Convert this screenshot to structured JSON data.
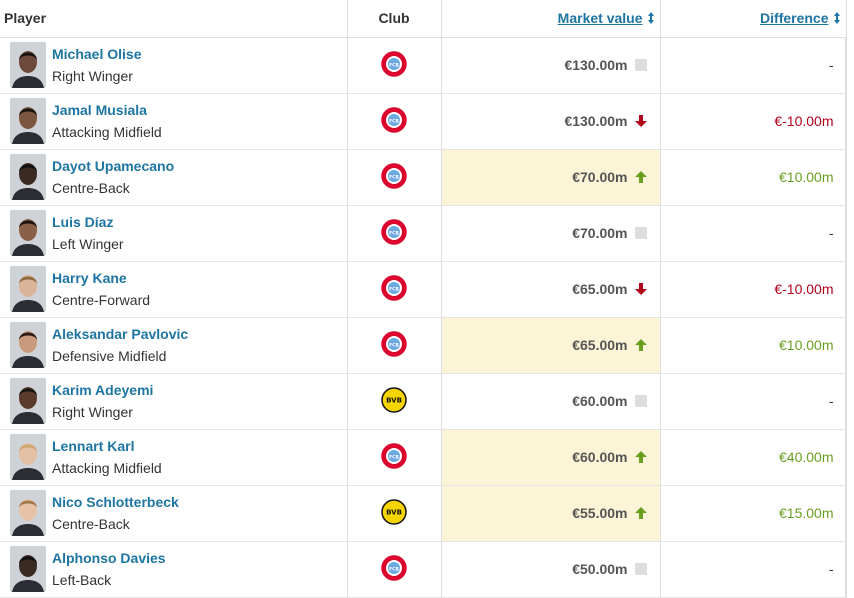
{
  "table": {
    "headers": [
      "Player",
      "Club",
      "Market value",
      "Difference"
    ],
    "rows": [
      {
        "name": "Michael Olise",
        "position": "Right Winger",
        "club": "FCB",
        "market_value": "€130.00m",
        "trend": "none",
        "difference": "-"
      },
      {
        "name": "Jamal Musiala",
        "position": "Attacking Midfield",
        "club": "FCB",
        "market_value": "€130.00m",
        "trend": "down",
        "difference": "€-10.00m"
      },
      {
        "name": "Dayot Upamecano",
        "position": "Centre-Back",
        "club": "FCB",
        "market_value": "€70.00m",
        "trend": "up",
        "difference": "€10.00m"
      },
      {
        "name": "Luis Díaz",
        "position": "Left Winger",
        "club": "FCB",
        "market_value": "€70.00m",
        "trend": "none",
        "difference": "-"
      },
      {
        "name": "Harry Kane",
        "position": "Centre-Forward",
        "club": "FCB",
        "market_value": "€65.00m",
        "trend": "down",
        "difference": "€-10.00m"
      },
      {
        "name": "Aleksandar Pavlovic",
        "position": "Defensive Midfield",
        "club": "FCB",
        "market_value": "€65.00m",
        "trend": "up",
        "difference": "€10.00m"
      },
      {
        "name": "Karim Adeyemi",
        "position": "Right Winger",
        "club": "BVB",
        "market_value": "€60.00m",
        "trend": "none",
        "difference": "-"
      },
      {
        "name": "Lennart Karl",
        "position": "Attacking Midfield",
        "club": "FCB",
        "market_value": "€60.00m",
        "trend": "up",
        "difference": "€40.00m"
      },
      {
        "name": "Nico Schlotterbeck",
        "position": "Centre-Back",
        "club": "BVB",
        "market_value": "€55.00m",
        "trend": "up",
        "difference": "€15.00m"
      },
      {
        "name": "Alphonso Davies",
        "position": "Left-Back",
        "club": "FCB",
        "market_value": "€50.00m",
        "trend": "none",
        "difference": "-"
      }
    ]
  }
}
